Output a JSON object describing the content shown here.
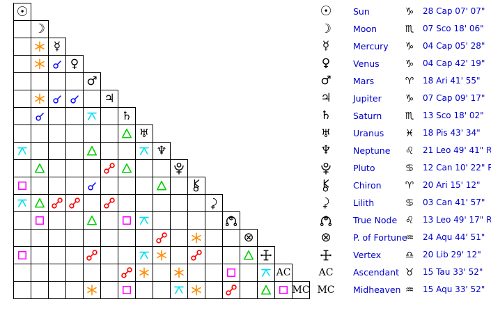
{
  "colors": {
    "background": "#FFFFFF",
    "grid_line": "#000000",
    "glyph": "#000000",
    "label_text": "#0000CC",
    "aspect_conjunction": "#0000FF",
    "aspect_sextile": "#FF8C00",
    "aspect_square": "#FF00FF",
    "aspect_trine": "#00D000",
    "aspect_opposition": "#FF0000",
    "aspect_quincunx": "#00E0F0"
  },
  "chart_data": {
    "type": "table",
    "description": "Astrological aspect grid (triangular matrix) with planetary positions list",
    "planets": [
      {
        "name": "Sun",
        "icon": "sun-icon",
        "sign": "Capricorn",
        "sign_icon": "capricorn-icon",
        "position": "28 Cap 07' 07\""
      },
      {
        "name": "Moon",
        "icon": "moon-icon",
        "sign": "Scorpio",
        "sign_icon": "scorpio-icon",
        "position": "07 Sco 18' 06\""
      },
      {
        "name": "Mercury",
        "icon": "mercury-icon",
        "sign": "Capricorn",
        "sign_icon": "capricorn-icon",
        "position": "04 Cap 05' 28\""
      },
      {
        "name": "Venus",
        "icon": "venus-icon",
        "sign": "Capricorn",
        "sign_icon": "capricorn-icon",
        "position": "04 Cap 42' 19\""
      },
      {
        "name": "Mars",
        "icon": "mars-icon",
        "sign": "Aries",
        "sign_icon": "aries-icon",
        "position": "18 Ari 41' 55\""
      },
      {
        "name": "Jupiter",
        "icon": "jupiter-icon",
        "sign": "Capricorn",
        "sign_icon": "capricorn-icon",
        "position": "07 Cap 09' 17\""
      },
      {
        "name": "Saturn",
        "icon": "saturn-icon",
        "sign": "Scorpio",
        "sign_icon": "scorpio-icon",
        "position": "13 Sco 18' 02\""
      },
      {
        "name": "Uranus",
        "icon": "uranus-icon",
        "sign": "Pisces",
        "sign_icon": "pisces-icon",
        "position": "18 Pis 43' 34\""
      },
      {
        "name": "Neptune",
        "icon": "neptune-icon",
        "sign": "Leo",
        "sign_icon": "leo-icon",
        "position": "21 Leo 49' 41\" R"
      },
      {
        "name": "Pluto",
        "icon": "pluto-icon",
        "sign": "Cancer",
        "sign_icon": "cancer-icon",
        "position": "12 Can 10' 22\" R"
      },
      {
        "name": "Chiron",
        "icon": "chiron-icon",
        "sign": "Aries",
        "sign_icon": "aries-icon",
        "position": "20 Ari 15' 12\""
      },
      {
        "name": "Lilith",
        "icon": "lilith-icon",
        "sign": "Cancer",
        "sign_icon": "cancer-icon",
        "position": "03 Can 41' 57\""
      },
      {
        "name": "True Node",
        "icon": "truenode-icon",
        "sign": "Leo",
        "sign_icon": "leo-icon",
        "position": "13 Leo 49' 17\" R"
      },
      {
        "name": "P. of Fortune",
        "icon": "fortune-icon",
        "sign": "Aquarius",
        "sign_icon": "aquarius-icon",
        "position": "24 Aqu 44' 51\""
      },
      {
        "name": "Vertex",
        "icon": "vertex-icon",
        "sign": "Libra",
        "sign_icon": "libra-icon",
        "position": "20 Lib 29' 12\""
      },
      {
        "name": "Ascendant",
        "icon": "ac-label",
        "sign": "Taurus",
        "sign_icon": "taurus-icon",
        "position": "15 Tau 33' 52\""
      },
      {
        "name": "Midheaven",
        "icon": "mc-label",
        "sign": "Aquarius",
        "sign_icon": "aquarius-icon",
        "position": "15 Aqu 33' 52\""
      }
    ],
    "aspects": [
      {
        "row": 2,
        "col": 1,
        "aspect": "sextile"
      },
      {
        "row": 3,
        "col": 1,
        "aspect": "sextile"
      },
      {
        "row": 3,
        "col": 2,
        "aspect": "conjunction"
      },
      {
        "row": 5,
        "col": 1,
        "aspect": "sextile"
      },
      {
        "row": 5,
        "col": 2,
        "aspect": "conjunction"
      },
      {
        "row": 5,
        "col": 3,
        "aspect": "conjunction"
      },
      {
        "row": 6,
        "col": 1,
        "aspect": "conjunction"
      },
      {
        "row": 6,
        "col": 4,
        "aspect": "quincunx"
      },
      {
        "row": 7,
        "col": 6,
        "aspect": "trine"
      },
      {
        "row": 8,
        "col": 0,
        "aspect": "quincunx"
      },
      {
        "row": 8,
        "col": 4,
        "aspect": "trine"
      },
      {
        "row": 8,
        "col": 7,
        "aspect": "quincunx"
      },
      {
        "row": 9,
        "col": 1,
        "aspect": "trine"
      },
      {
        "row": 9,
        "col": 5,
        "aspect": "opposition"
      },
      {
        "row": 9,
        "col": 6,
        "aspect": "trine"
      },
      {
        "row": 10,
        "col": 0,
        "aspect": "square"
      },
      {
        "row": 10,
        "col": 4,
        "aspect": "conjunction"
      },
      {
        "row": 10,
        "col": 8,
        "aspect": "trine"
      },
      {
        "row": 11,
        "col": 0,
        "aspect": "quincunx"
      },
      {
        "row": 11,
        "col": 1,
        "aspect": "trine"
      },
      {
        "row": 11,
        "col": 2,
        "aspect": "opposition"
      },
      {
        "row": 11,
        "col": 3,
        "aspect": "opposition"
      },
      {
        "row": 11,
        "col": 5,
        "aspect": "opposition"
      },
      {
        "row": 12,
        "col": 1,
        "aspect": "square"
      },
      {
        "row": 12,
        "col": 4,
        "aspect": "trine"
      },
      {
        "row": 12,
        "col": 6,
        "aspect": "square"
      },
      {
        "row": 12,
        "col": 7,
        "aspect": "quincunx"
      },
      {
        "row": 13,
        "col": 8,
        "aspect": "opposition"
      },
      {
        "row": 13,
        "col": 10,
        "aspect": "sextile"
      },
      {
        "row": 14,
        "col": 0,
        "aspect": "square"
      },
      {
        "row": 14,
        "col": 4,
        "aspect": "opposition"
      },
      {
        "row": 14,
        "col": 7,
        "aspect": "quincunx"
      },
      {
        "row": 14,
        "col": 8,
        "aspect": "sextile"
      },
      {
        "row": 14,
        "col": 10,
        "aspect": "opposition"
      },
      {
        "row": 14,
        "col": 13,
        "aspect": "trine"
      },
      {
        "row": 15,
        "col": 6,
        "aspect": "opposition"
      },
      {
        "row": 15,
        "col": 7,
        "aspect": "sextile"
      },
      {
        "row": 15,
        "col": 9,
        "aspect": "sextile"
      },
      {
        "row": 15,
        "col": 12,
        "aspect": "square"
      },
      {
        "row": 15,
        "col": 14,
        "aspect": "quincunx"
      },
      {
        "row": 16,
        "col": 4,
        "aspect": "sextile"
      },
      {
        "row": 16,
        "col": 6,
        "aspect": "square"
      },
      {
        "row": 16,
        "col": 9,
        "aspect": "quincunx"
      },
      {
        "row": 16,
        "col": 10,
        "aspect": "sextile"
      },
      {
        "row": 16,
        "col": 12,
        "aspect": "opposition"
      },
      {
        "row": 16,
        "col": 14,
        "aspect": "trine"
      },
      {
        "row": 16,
        "col": 15,
        "aspect": "square"
      }
    ]
  }
}
